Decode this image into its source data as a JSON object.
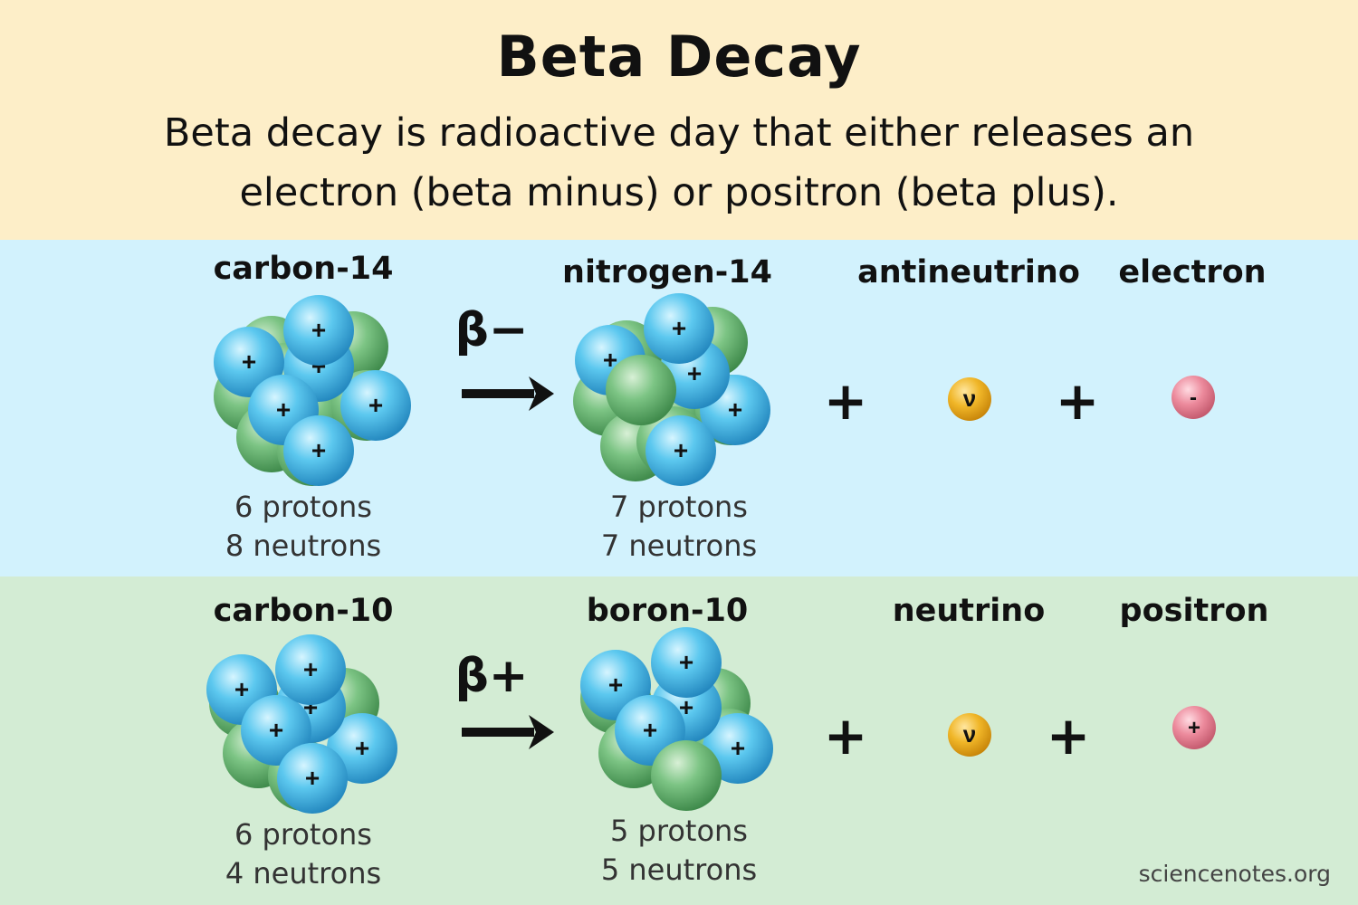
{
  "header": {
    "title": "Beta Decay",
    "subtitle": "Beta decay is radioactive day that either releases an electron (beta minus) or positron (beta plus)."
  },
  "beta_minus": {
    "parent": {
      "name": "carbon-14",
      "protons_text": "6 protons",
      "neutrons_text": "8 neutrons"
    },
    "symbol": "β−",
    "daughter": {
      "name": "nitrogen-14",
      "protons_text": "7 protons",
      "neutrons_text": "7 neutrons"
    },
    "operator": "+",
    "neutral_particle": {
      "name": "antineutrino",
      "symbol": "ν"
    },
    "charged_particle": {
      "name": "electron",
      "symbol": "-"
    }
  },
  "beta_plus": {
    "parent": {
      "name": "carbon-10",
      "protons_text": "6 protons",
      "neutrons_text": "4 neutrons"
    },
    "symbol": "β+",
    "daughter": {
      "name": "boron-10",
      "protons_text": "5 protons",
      "neutrons_text": "5 neutrons"
    },
    "operator": "+",
    "neutral_particle": {
      "name": "neutrino",
      "symbol": "ν"
    },
    "charged_particle": {
      "name": "positron",
      "symbol": "+"
    }
  },
  "proton_mark": "+",
  "credit": "sciencenotes.org",
  "colors": {
    "header_bg": "#fdeec8",
    "beta_minus_bg": "#d2f2fd",
    "beta_plus_bg": "#d3ecd4",
    "proton": "#5cc8ef",
    "neutron": "#7cc484",
    "neutrino": "#f0b628",
    "charged_lepton": "#ec8a9c"
  }
}
